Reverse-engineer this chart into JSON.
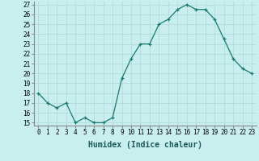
{
  "x": [
    0,
    1,
    2,
    3,
    4,
    5,
    6,
    7,
    8,
    9,
    10,
    11,
    12,
    13,
    14,
    15,
    16,
    17,
    18,
    19,
    20,
    21,
    22,
    23
  ],
  "y": [
    18,
    17,
    16.5,
    17,
    15,
    15.5,
    15,
    15,
    15.5,
    19.5,
    21.5,
    23,
    23,
    25,
    25.5,
    26.5,
    27,
    26.5,
    26.5,
    25.5,
    23.5,
    21.5,
    20.5,
    20
  ],
  "line_color": "#1a7a6e",
  "marker": "+",
  "bg_color": "#c8eeee",
  "grid_color": "#b0d8d8",
  "xlabel": "Humidex (Indice chaleur)",
  "ylim": [
    15,
    27
  ],
  "xlim": [
    -0.5,
    23.5
  ],
  "yticks": [
    15,
    16,
    17,
    18,
    19,
    20,
    21,
    22,
    23,
    24,
    25,
    26,
    27
  ],
  "xticks": [
    0,
    1,
    2,
    3,
    4,
    5,
    6,
    7,
    8,
    9,
    10,
    11,
    12,
    13,
    14,
    15,
    16,
    17,
    18,
    19,
    20,
    21,
    22,
    23
  ],
  "xtick_labels": [
    "0",
    "1",
    "2",
    "3",
    "4",
    "5",
    "6",
    "7",
    "8",
    "9",
    "10",
    "11",
    "12",
    "13",
    "14",
    "15",
    "16",
    "17",
    "18",
    "19",
    "20",
    "21",
    "22",
    "23"
  ],
  "tick_fontsize": 5.5,
  "xlabel_fontsize": 7
}
